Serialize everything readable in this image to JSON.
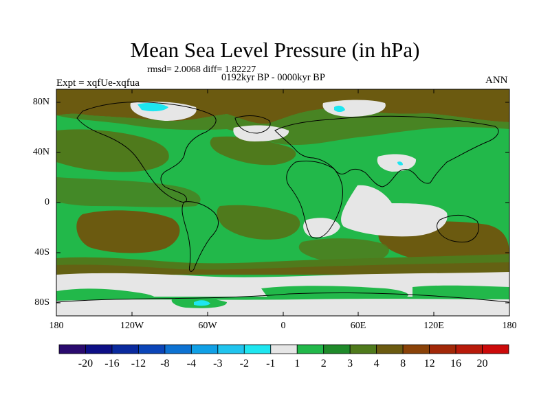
{
  "title": "Mean Sea Level Pressure (in hPa)",
  "stats": "rmsd= 2.0068 diff= 1.82227",
  "period": "0192kyr BP - 0000kyr BP",
  "experiment": "Expt = xqfUe-xqfua",
  "season": "ANN",
  "lat_ticks": [
    "80N",
    "40N",
    "0",
    "40S",
    "80S"
  ],
  "lon_ticks": [
    "180",
    "120W",
    "60W",
    "0",
    "60E",
    "120E",
    "180"
  ],
  "colorbar": {
    "labels": [
      "-20",
      "-16",
      "-12",
      "-8",
      "-4",
      "-3",
      "-2",
      "-1",
      "1",
      "2",
      "3",
      "4",
      "8",
      "12",
      "16",
      "20"
    ],
    "colors": [
      "#2a0a6e",
      "#0d0f86",
      "#0a2a9e",
      "#0b45b8",
      "#0d72d2",
      "#10a0e6",
      "#20c4ee",
      "#1ee6f0",
      "#e6e6e6",
      "#22b84a",
      "#1f8a2a",
      "#4f7a1c",
      "#6b5a10",
      "#8a4208",
      "#a22808",
      "#b81a0a",
      "#cc0a0a"
    ]
  },
  "colors": {
    "land_green": "#22b84a",
    "brown": "#6b5a10",
    "olive": "#4f7a1c",
    "light": "#e6e6e6",
    "cyan": "#1ee6f0"
  }
}
